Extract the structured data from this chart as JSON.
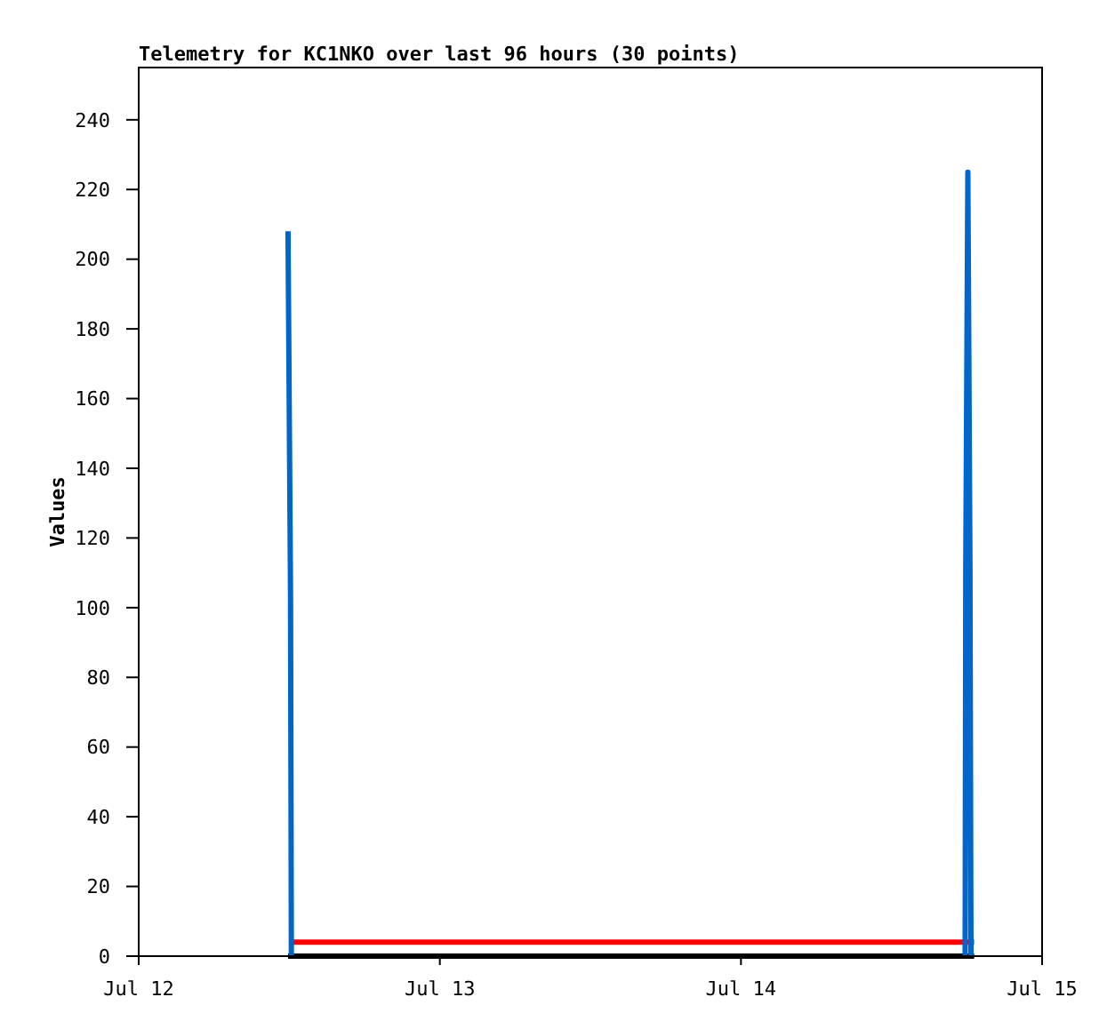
{
  "chart_data": {
    "type": "line",
    "title": "Telemetry for KC1NKO over last 96 hours (30 points)",
    "ylabel": "Values",
    "xlim": [
      "--07-12T00:00",
      "--07-15T00:00"
    ],
    "xticks": [
      {
        "value": "--07-12T00:00",
        "label": "Jul 12"
      },
      {
        "value": "--07-13T00:00",
        "label": "Jul 13"
      },
      {
        "value": "--07-14T00:00",
        "label": "Jul 14"
      },
      {
        "value": "--07-15T00:00",
        "label": "Jul 15"
      }
    ],
    "ylim": [
      0,
      255
    ],
    "yticks": [
      0,
      20,
      40,
      60,
      80,
      100,
      120,
      140,
      160,
      180,
      200,
      220,
      240
    ],
    "grid": false,
    "marker": "none",
    "line_style": "solid",
    "series": [
      {
        "color": "#000000",
        "x": [
          "--07-12T11:54",
          "--07-14T18:35"
        ],
        "values": [
          0,
          0
        ]
      },
      {
        "color": "#ff0000",
        "x": [
          "--07-12T12:10",
          "--07-14T18:35"
        ],
        "values": [
          4,
          4
        ]
      },
      {
        "color": "#0066cc",
        "x": [
          "--07-12T11:54",
          "--07-12T12:06",
          "--07-12T12:10",
          "--07-13T12:00",
          "--07-14T17:52",
          "--07-14T17:55",
          "--07-14T18:05",
          "--07-14T18:15",
          "--07-14T18:20"
        ],
        "values": [
          208,
          104,
          0,
          null,
          0,
          112,
          225,
          112,
          0
        ]
      }
    ]
  }
}
